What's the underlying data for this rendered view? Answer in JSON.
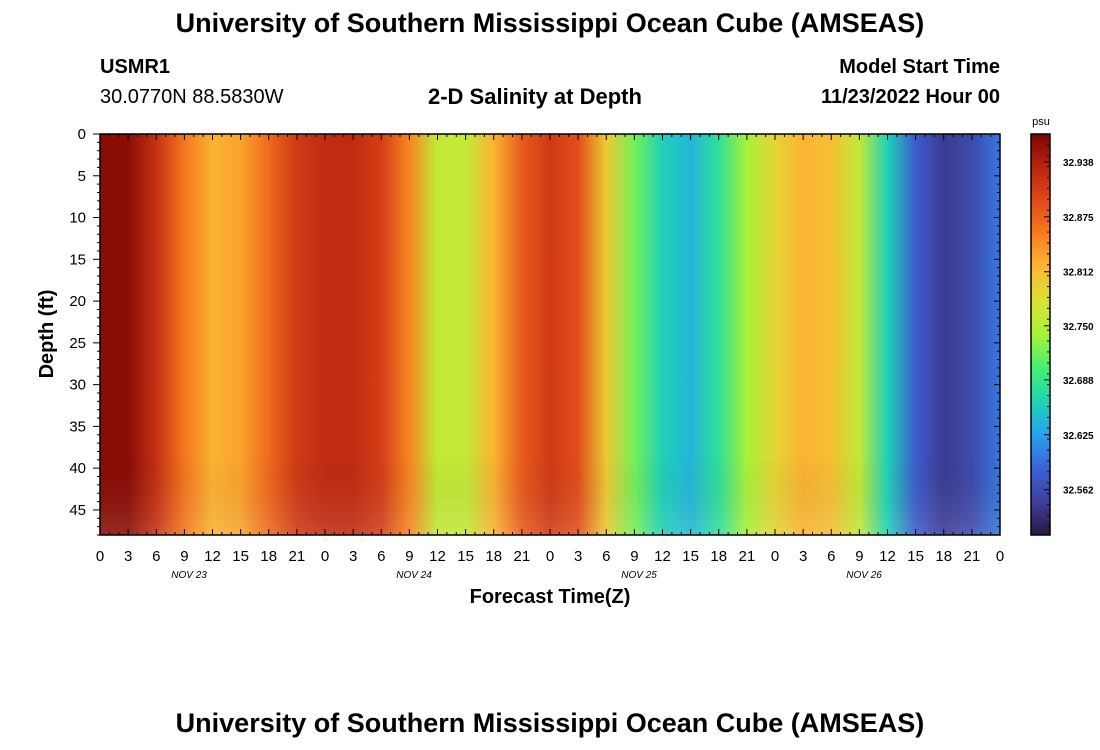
{
  "header": {
    "title": "University of Southern Mississippi Ocean Cube (AMSEAS)",
    "station_id": "USMR1",
    "station_coords": "30.0770N  88.5830W",
    "chart_title": "2-D Salinity at Depth",
    "model_start_label": "Model Start Time",
    "model_start_value": "11/23/2022 Hour 00"
  },
  "footer": {
    "title": "University of Southern Mississippi Ocean Cube (AMSEAS)"
  },
  "chart_data": {
    "type": "heatmap",
    "title": "2-D Salinity at Depth",
    "xlabel": "Forecast Time(Z)",
    "ylabel": "Depth (ft)",
    "x_tick_labels": [
      "0",
      "3",
      "6",
      "9",
      "12",
      "15",
      "18",
      "21",
      "0",
      "3",
      "6",
      "9",
      "12",
      "15",
      "18",
      "21",
      "0",
      "3",
      "6",
      "9",
      "12",
      "15",
      "18",
      "21",
      "0",
      "3",
      "6",
      "9",
      "12",
      "15",
      "18",
      "21",
      "0"
    ],
    "day_labels": [
      "NOV 23",
      "NOV 24",
      "NOV 25",
      "NOV 26"
    ],
    "xlim_hours": [
      0,
      96
    ],
    "y_ticks": [
      0,
      5,
      10,
      15,
      20,
      25,
      30,
      35,
      40,
      45
    ],
    "ylim": [
      0,
      48
    ],
    "colorbar": {
      "unit": "psu",
      "ticks": [
        "32.938",
        "32.875",
        "32.812",
        "32.750",
        "32.688",
        "32.625",
        "32.562"
      ],
      "range": [
        32.51,
        32.97
      ],
      "colormap": [
        "#2c1640",
        "#3f3f9a",
        "#3c62d8",
        "#27a2f0",
        "#1fd5b4",
        "#44ef74",
        "#a8f23a",
        "#dae234",
        "#fbb834",
        "#f87d1f",
        "#e0491a",
        "#b92610",
        "#7a0403"
      ]
    },
    "x_hours": [
      0,
      3,
      6,
      9,
      12,
      15,
      18,
      21,
      24,
      27,
      30,
      33,
      36,
      39,
      42,
      45,
      48,
      51,
      54,
      57,
      60,
      63,
      66,
      69,
      72,
      75,
      78,
      81,
      84,
      87,
      90,
      93,
      96
    ],
    "salinity_profile": [
      32.96,
      32.96,
      32.92,
      32.86,
      32.82,
      32.83,
      32.87,
      32.91,
      32.925,
      32.925,
      32.905,
      32.85,
      32.76,
      32.76,
      32.82,
      32.88,
      32.91,
      32.89,
      32.8,
      32.72,
      32.66,
      32.64,
      32.68,
      32.74,
      32.79,
      32.82,
      32.81,
      32.76,
      32.66,
      32.58,
      32.545,
      32.56,
      32.6
    ]
  }
}
